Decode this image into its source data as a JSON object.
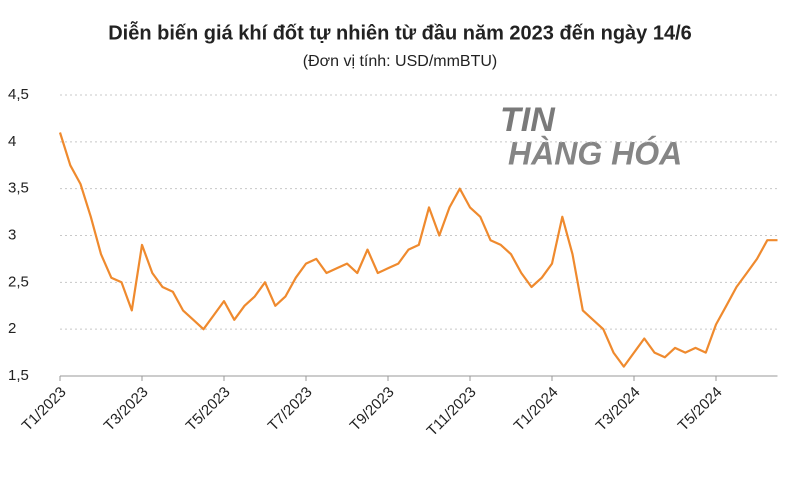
{
  "chart_data": {
    "type": "line",
    "title": "Diễn biến giá khí đốt tự nhiên từ đầu năm 2023 đến ngày 14/6",
    "subtitle": "(Đơn vị tính: USD/mmBTU)",
    "watermark": [
      "TIN",
      "HÀNG HÓA"
    ],
    "categories": [
      "T1/2023",
      null,
      null,
      null,
      null,
      null,
      null,
      null,
      "T3/2023",
      null,
      null,
      null,
      null,
      null,
      null,
      null,
      "T5/2023",
      null,
      null,
      null,
      null,
      null,
      null,
      null,
      "T7/2023",
      null,
      null,
      null,
      null,
      null,
      null,
      null,
      "T9/2023",
      null,
      null,
      null,
      null,
      null,
      null,
      null,
      "T11/2023",
      null,
      null,
      null,
      null,
      null,
      null,
      null,
      "T1/2024",
      null,
      null,
      null,
      null,
      null,
      null,
      null,
      "T3/2024",
      null,
      null,
      null,
      null,
      null,
      null,
      null,
      "T5/2024",
      null,
      null,
      null,
      null,
      null,
      null
    ],
    "series": [
      {
        "color": "#ef8a2e",
        "values": [
          4.1,
          3.75,
          3.55,
          3.2,
          2.8,
          2.55,
          2.5,
          2.2,
          2.9,
          2.6,
          2.45,
          2.4,
          2.2,
          2.1,
          2.0,
          2.15,
          2.3,
          2.1,
          2.25,
          2.35,
          2.5,
          2.25,
          2.35,
          2.55,
          2.7,
          2.75,
          2.6,
          2.65,
          2.7,
          2.6,
          2.85,
          2.6,
          2.65,
          2.7,
          2.85,
          2.9,
          3.3,
          3.0,
          3.3,
          3.5,
          3.3,
          3.2,
          2.95,
          2.9,
          2.8,
          2.6,
          2.45,
          2.55,
          2.7,
          3.2,
          2.8,
          2.2,
          2.1,
          2.0,
          1.75,
          1.6,
          1.75,
          1.9,
          1.75,
          1.7,
          1.8,
          1.75,
          1.8,
          1.75,
          2.05,
          2.25,
          2.45,
          2.6,
          2.75,
          2.95,
          2.95
        ]
      }
    ],
    "ylim": [
      1.5,
      4.5
    ],
    "yticks": [
      {
        "value": 1.5,
        "label": "1,5"
      },
      2,
      {
        "value": 2.5,
        "label": "2,5"
      },
      3,
      {
        "value": 3.5,
        "label": "3,5"
      },
      4,
      {
        "value": 4.5,
        "label": "4,5"
      }
    ],
    "grid": true
  }
}
